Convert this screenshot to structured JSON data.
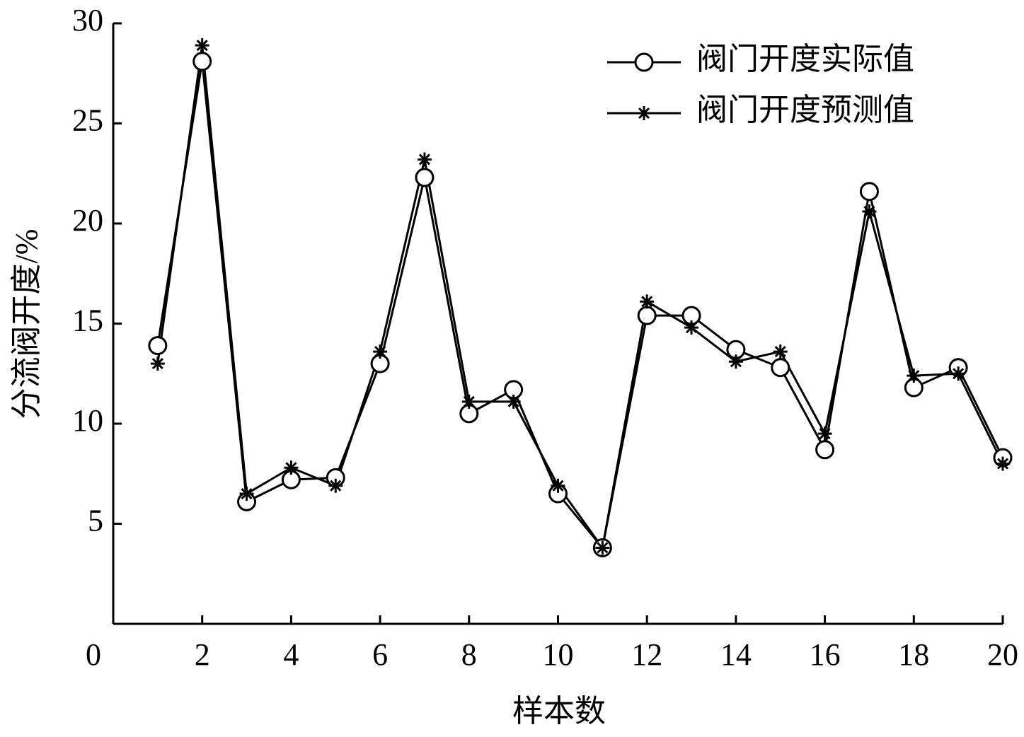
{
  "chart_data": {
    "type": "line",
    "x_label": "样本数",
    "y_label": "分流阀开度/%",
    "x": [
      1,
      2,
      3,
      4,
      5,
      6,
      7,
      8,
      9,
      10,
      11,
      12,
      13,
      14,
      15,
      16,
      17,
      18,
      19,
      20
    ],
    "series": [
      {
        "name": "阀门开度实际值",
        "color": "#000000",
        "marker": "circle",
        "values": [
          13.9,
          28.1,
          6.1,
          7.2,
          7.3,
          13.0,
          22.3,
          10.5,
          11.7,
          6.5,
          3.8,
          15.4,
          15.4,
          13.7,
          12.8,
          8.7,
          21.6,
          11.8,
          12.8,
          8.3
        ]
      },
      {
        "name": "阀门开度预测值",
        "color": "#000000",
        "marker": "star",
        "values": [
          13.0,
          28.9,
          6.5,
          7.8,
          6.9,
          13.6,
          23.2,
          11.1,
          11.1,
          6.9,
          3.8,
          16.1,
          14.8,
          13.1,
          13.6,
          9.5,
          20.6,
          12.4,
          12.5,
          8.0
        ]
      }
    ],
    "xlim": [
      0,
      20
    ],
    "xticks": [
      0,
      2,
      4,
      6,
      8,
      10,
      12,
      14,
      16,
      18,
      20
    ],
    "ylim": [
      0,
      30
    ],
    "yticks": [
      5,
      10,
      15,
      20,
      25,
      30
    ],
    "legend": "upper-right"
  }
}
